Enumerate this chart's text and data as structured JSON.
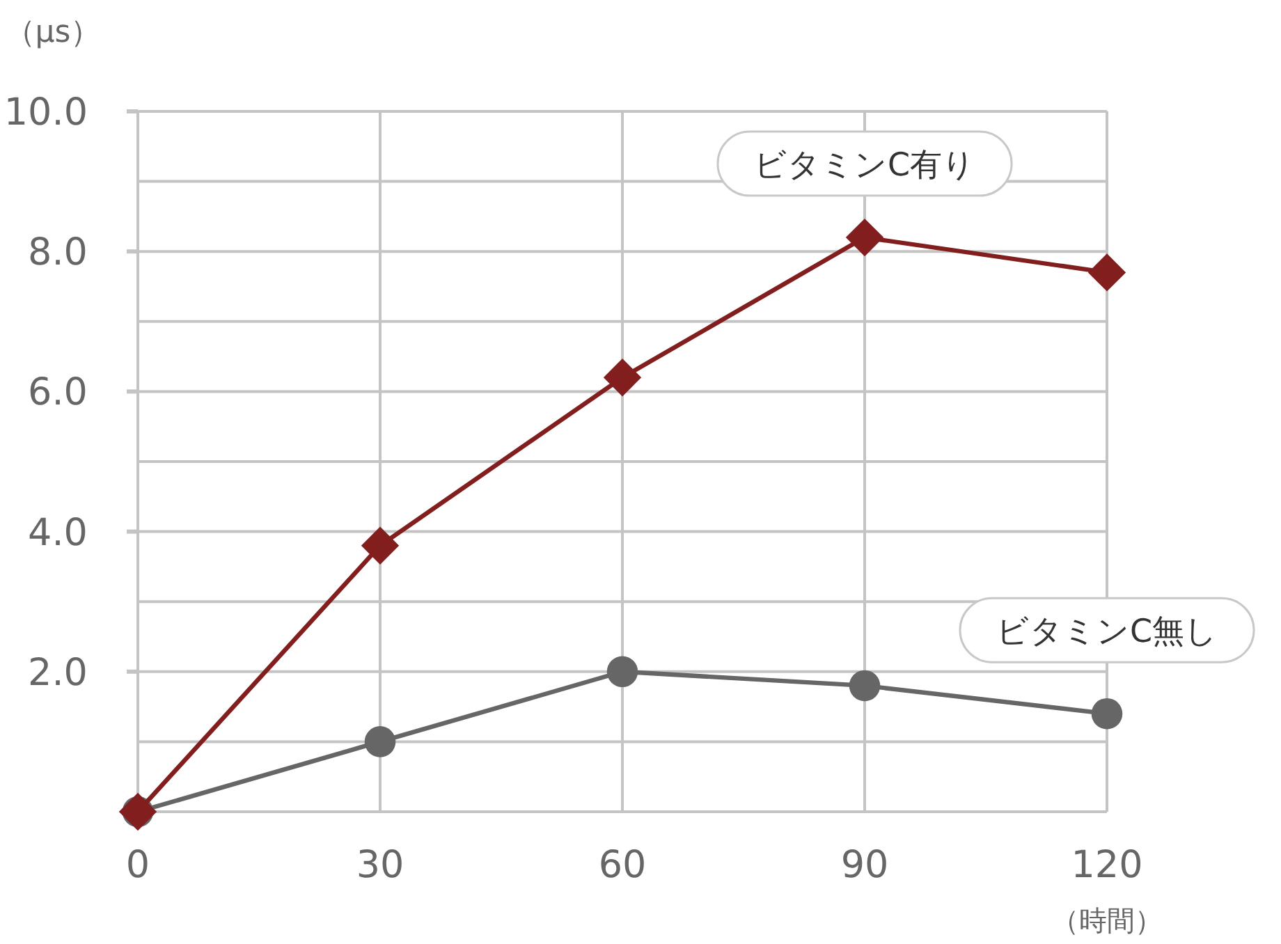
{
  "chart_data": {
    "type": "line",
    "xlabel": "（時間）",
    "ylabel": "（μs）",
    "x": [
      0,
      30,
      60,
      90,
      120
    ],
    "series": [
      {
        "name": "ビタミンC有り",
        "color": "#821e1e",
        "marker": "diamond",
        "values": [
          0,
          3.8,
          6.2,
          8.2,
          7.7
        ]
      },
      {
        "name": "ビタミンC無し",
        "color": "#666666",
        "marker": "circle",
        "values": [
          0,
          1.0,
          2.0,
          1.8,
          1.4
        ]
      }
    ],
    "xlim": [
      0,
      120
    ],
    "xticks": [
      0,
      30,
      60,
      90,
      120
    ],
    "ylim": [
      0,
      10
    ],
    "yticks": [
      {
        "value": 1,
        "label": null
      },
      {
        "value": 2,
        "label": "2.0"
      },
      {
        "value": 3,
        "label": null
      },
      {
        "value": 4,
        "label": "4.0"
      },
      {
        "value": 5,
        "label": null
      },
      {
        "value": 6,
        "label": "6.0"
      },
      {
        "value": 7,
        "label": null
      },
      {
        "value": 8,
        "label": "8.0"
      },
      {
        "value": 9,
        "label": null
      },
      {
        "value": 10,
        "label": "10.0"
      }
    ],
    "grid": true
  }
}
